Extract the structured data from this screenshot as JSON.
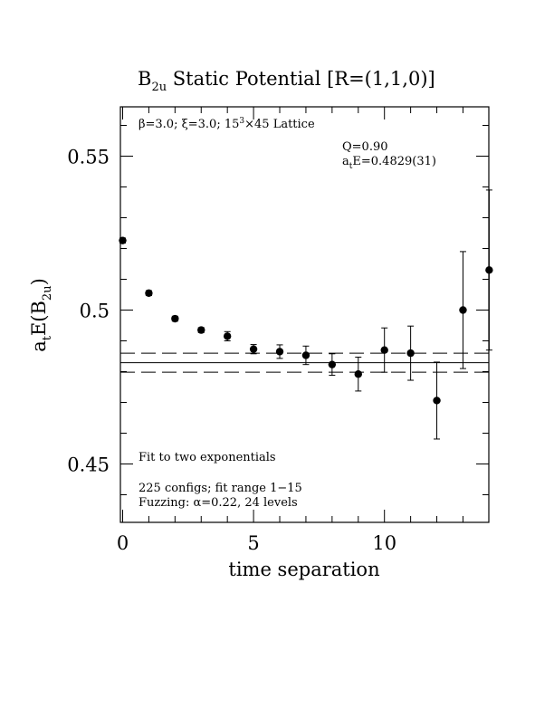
{
  "chart_data": {
    "type": "scatter",
    "title": "B₂ᵤ Static Potential [R=(1,1,0)]",
    "title_parts": {
      "main": "B",
      "sub": "2u",
      "rest": " Static Potential [R=(1,1,0)]"
    },
    "xlabel": "time separation",
    "ylabel_parts": {
      "a": "a",
      "a_sub": "t",
      "mid": "E(B",
      "b_sub": "2u",
      "end": ")"
    },
    "xlim": [
      0,
      14
    ],
    "ylim": [
      0.43,
      0.565
    ],
    "x_ticks": [
      {
        "value": 0,
        "label": "0"
      },
      {
        "value": 5,
        "label": "5"
      },
      {
        "value": 10,
        "label": "10"
      }
    ],
    "y_ticks": [
      {
        "value": 0.45,
        "label": "0.45"
      },
      {
        "value": 0.5,
        "label": "0.5"
      },
      {
        "value": 0.55,
        "label": "0.55"
      }
    ],
    "grid": false,
    "points": [
      {
        "x": 0,
        "y": 0.5226,
        "err": 0.0008
      },
      {
        "x": 1,
        "y": 0.5055,
        "err": 0.0008
      },
      {
        "x": 2,
        "y": 0.4972,
        "err": 0.0008
      },
      {
        "x": 3,
        "y": 0.4935,
        "err": 0.0008
      },
      {
        "x": 4,
        "y": 0.4915,
        "err": 0.0015
      },
      {
        "x": 5,
        "y": 0.4873,
        "err": 0.0015
      },
      {
        "x": 6,
        "y": 0.4865,
        "err": 0.0022
      },
      {
        "x": 7,
        "y": 0.4853,
        "err": 0.003
      },
      {
        "x": 8,
        "y": 0.4823,
        "err": 0.0035
      },
      {
        "x": 9,
        "y": 0.4792,
        "err": 0.0055
      },
      {
        "x": 10,
        "y": 0.487,
        "err": 0.0072
      },
      {
        "x": 11,
        "y": 0.486,
        "err": 0.0088
      },
      {
        "x": 12,
        "y": 0.4706,
        "err": 0.0125
      },
      {
        "x": 13,
        "y": 0.5,
        "err": 0.019
      },
      {
        "x": 14,
        "y": 0.513,
        "err": 0.026
      }
    ],
    "fit": {
      "value": 0.4829,
      "error": 0.0031,
      "x_range": [
        0,
        14
      ]
    },
    "annotations": {
      "lattice_parts": [
        "β=3.0; ξ=3.0; 15",
        "3",
        "×45 Lattice"
      ],
      "q": "Q=0.90",
      "energy_parts": {
        "a": "a",
        "sub": "t",
        "rest": "E=0.4829(31)"
      },
      "fit_desc": "Fit to two exponentials",
      "configs": "225 configs; fit range 1−15",
      "fuzzing": "Fuzzing: α=0.22, 24 levels"
    }
  }
}
